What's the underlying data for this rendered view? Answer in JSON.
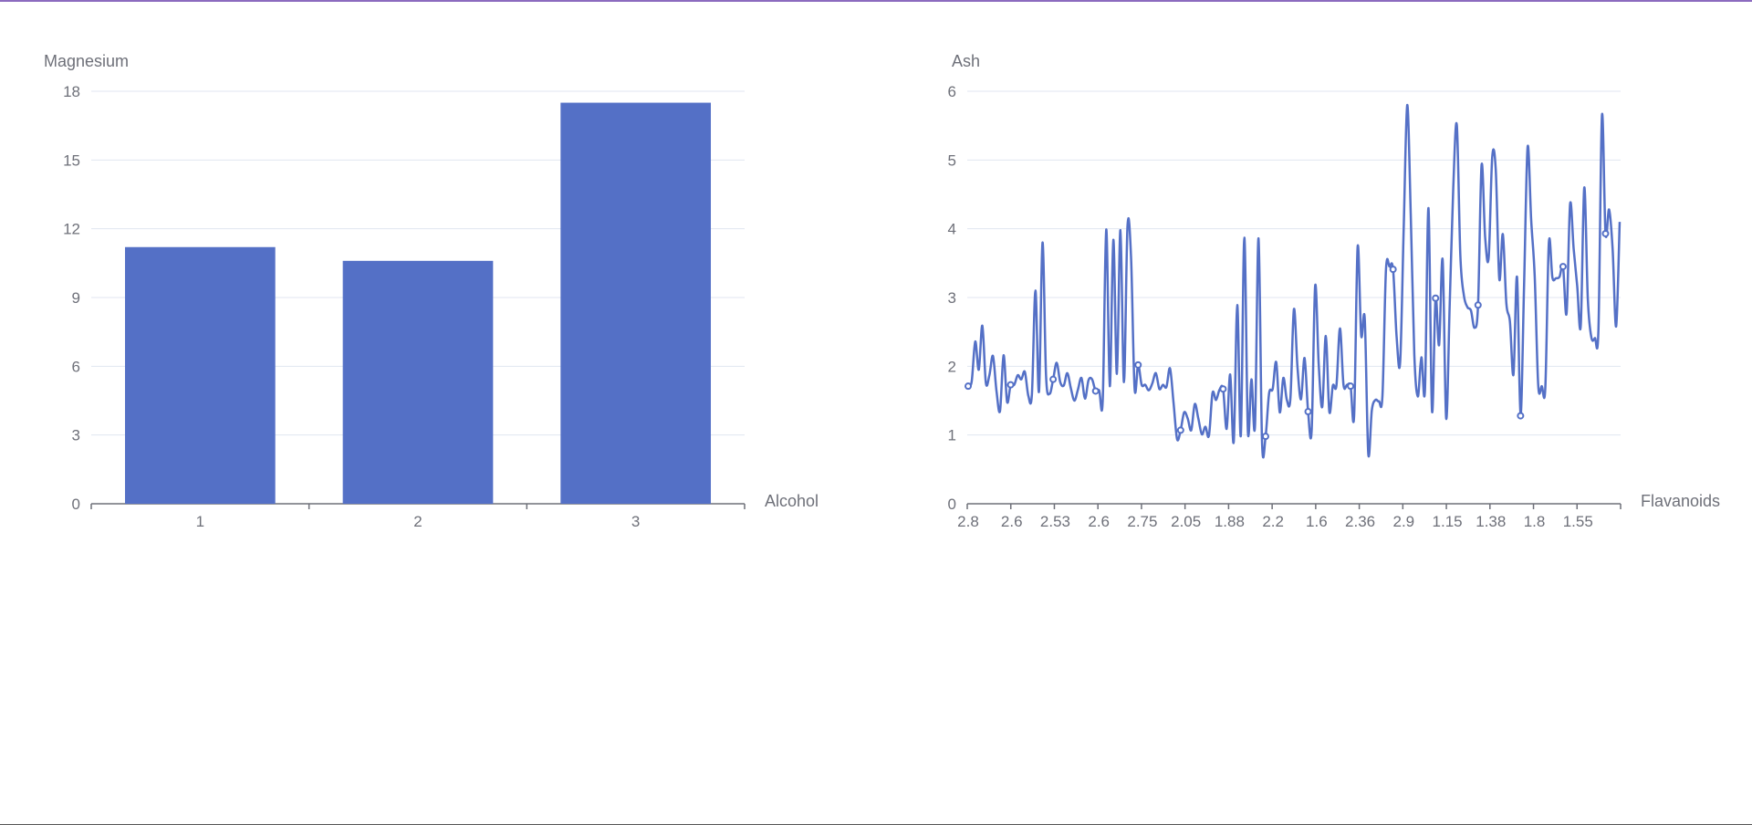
{
  "colors": {
    "series": "#5470c6",
    "axis": "#6e7079",
    "grid": "#e0e6f1"
  },
  "chart_data": [
    {
      "type": "bar",
      "xlabel": "Alcohol",
      "ylabel": "Magnesium",
      "categories": [
        "1",
        "2",
        "3"
      ],
      "values": [
        11.2,
        10.6,
        17.5
      ],
      "ylim": [
        0,
        18
      ],
      "yticks": [
        "0",
        "3",
        "6",
        "9",
        "12",
        "15",
        "18"
      ],
      "grid": true
    },
    {
      "type": "line",
      "smooth": true,
      "xlabel": "Flavanoids",
      "ylabel": "Ash",
      "ylim": [
        0,
        6
      ],
      "yticks": [
        "0",
        "1",
        "2",
        "3",
        "4",
        "5",
        "6"
      ],
      "xticks": [
        "2.8",
        "2.6",
        "2.53",
        "2.6",
        "2.75",
        "2.05",
        "1.88",
        "2.2",
        "1.6",
        "2.36",
        "2.9",
        "1.15",
        "1.38",
        "1.8",
        "1.55"
      ],
      "values": [
        1.71,
        1.78,
        2.36,
        1.95,
        2.59,
        1.76,
        1.87,
        2.15,
        1.64,
        1.35,
        2.16,
        1.48,
        1.73,
        1.73,
        1.87,
        1.81,
        1.92,
        1.57,
        1.59,
        3.1,
        1.63,
        3.8,
        1.86,
        1.6,
        1.81,
        2.05,
        1.77,
        1.72,
        1.9,
        1.68,
        1.5,
        1.66,
        1.83,
        1.53,
        1.8,
        1.81,
        1.64,
        1.65,
        1.5,
        3.99,
        1.71,
        3.84,
        1.89,
        3.98,
        1.77,
        4.04,
        3.59,
        1.68,
        2.02,
        1.73,
        1.73,
        1.65,
        1.75,
        1.9,
        1.67,
        1.73,
        1.7,
        1.97,
        1.47,
        0.94,
        1.07,
        1.33,
        1.24,
        1.07,
        1.45,
        1.24,
        1.01,
        1.12,
        0.99,
        1.61,
        1.51,
        1.66,
        1.67,
        1.09,
        1.88,
        0.9,
        2.89,
        0.99,
        3.87,
        1.05,
        1.81,
        1.13,
        3.86,
        0.89,
        0.98,
        1.61,
        1.67,
        2.06,
        1.33,
        1.83,
        1.51,
        1.53,
        2.83,
        1.99,
        1.52,
        2.12,
        1.34,
        1.06,
        3.17,
        2.03,
        1.41,
        2.44,
        1.34,
        1.72,
        1.72,
        2.55,
        1.73,
        1.73,
        1.71,
        1.28,
        3.74,
        2.45,
        2.69,
        0.73,
        1.36,
        1.51,
        1.49,
        1.57,
        3.41,
        3.45,
        3.41,
        2.43,
        2.06,
        4.0,
        5.8,
        4.2,
        2.17,
        1.56,
        2.13,
        1.65,
        4.3,
        1.35,
        2.99,
        2.31,
        3.55,
        1.24,
        2.91,
        4.6,
        5.51,
        3.61,
        3.03,
        2.86,
        2.81,
        2.56,
        2.89,
        4.93,
        3.88,
        3.58,
        5.04,
        4.86,
        3.27,
        3.92,
        2.91,
        2.65,
        1.88,
        3.3,
        1.28,
        3.18,
        5.19,
        4.13,
        3.31,
        1.72,
        1.71,
        1.69,
        3.8,
        3.29,
        3.28,
        3.3,
        3.45,
        2.77,
        4.36,
        3.71,
        3.17,
        2.59,
        4.6,
        2.98,
        2.42,
        2.41,
        2.53,
        5.65,
        3.93,
        4.28,
        3.71,
        2.58,
        4.1
      ]
    }
  ]
}
